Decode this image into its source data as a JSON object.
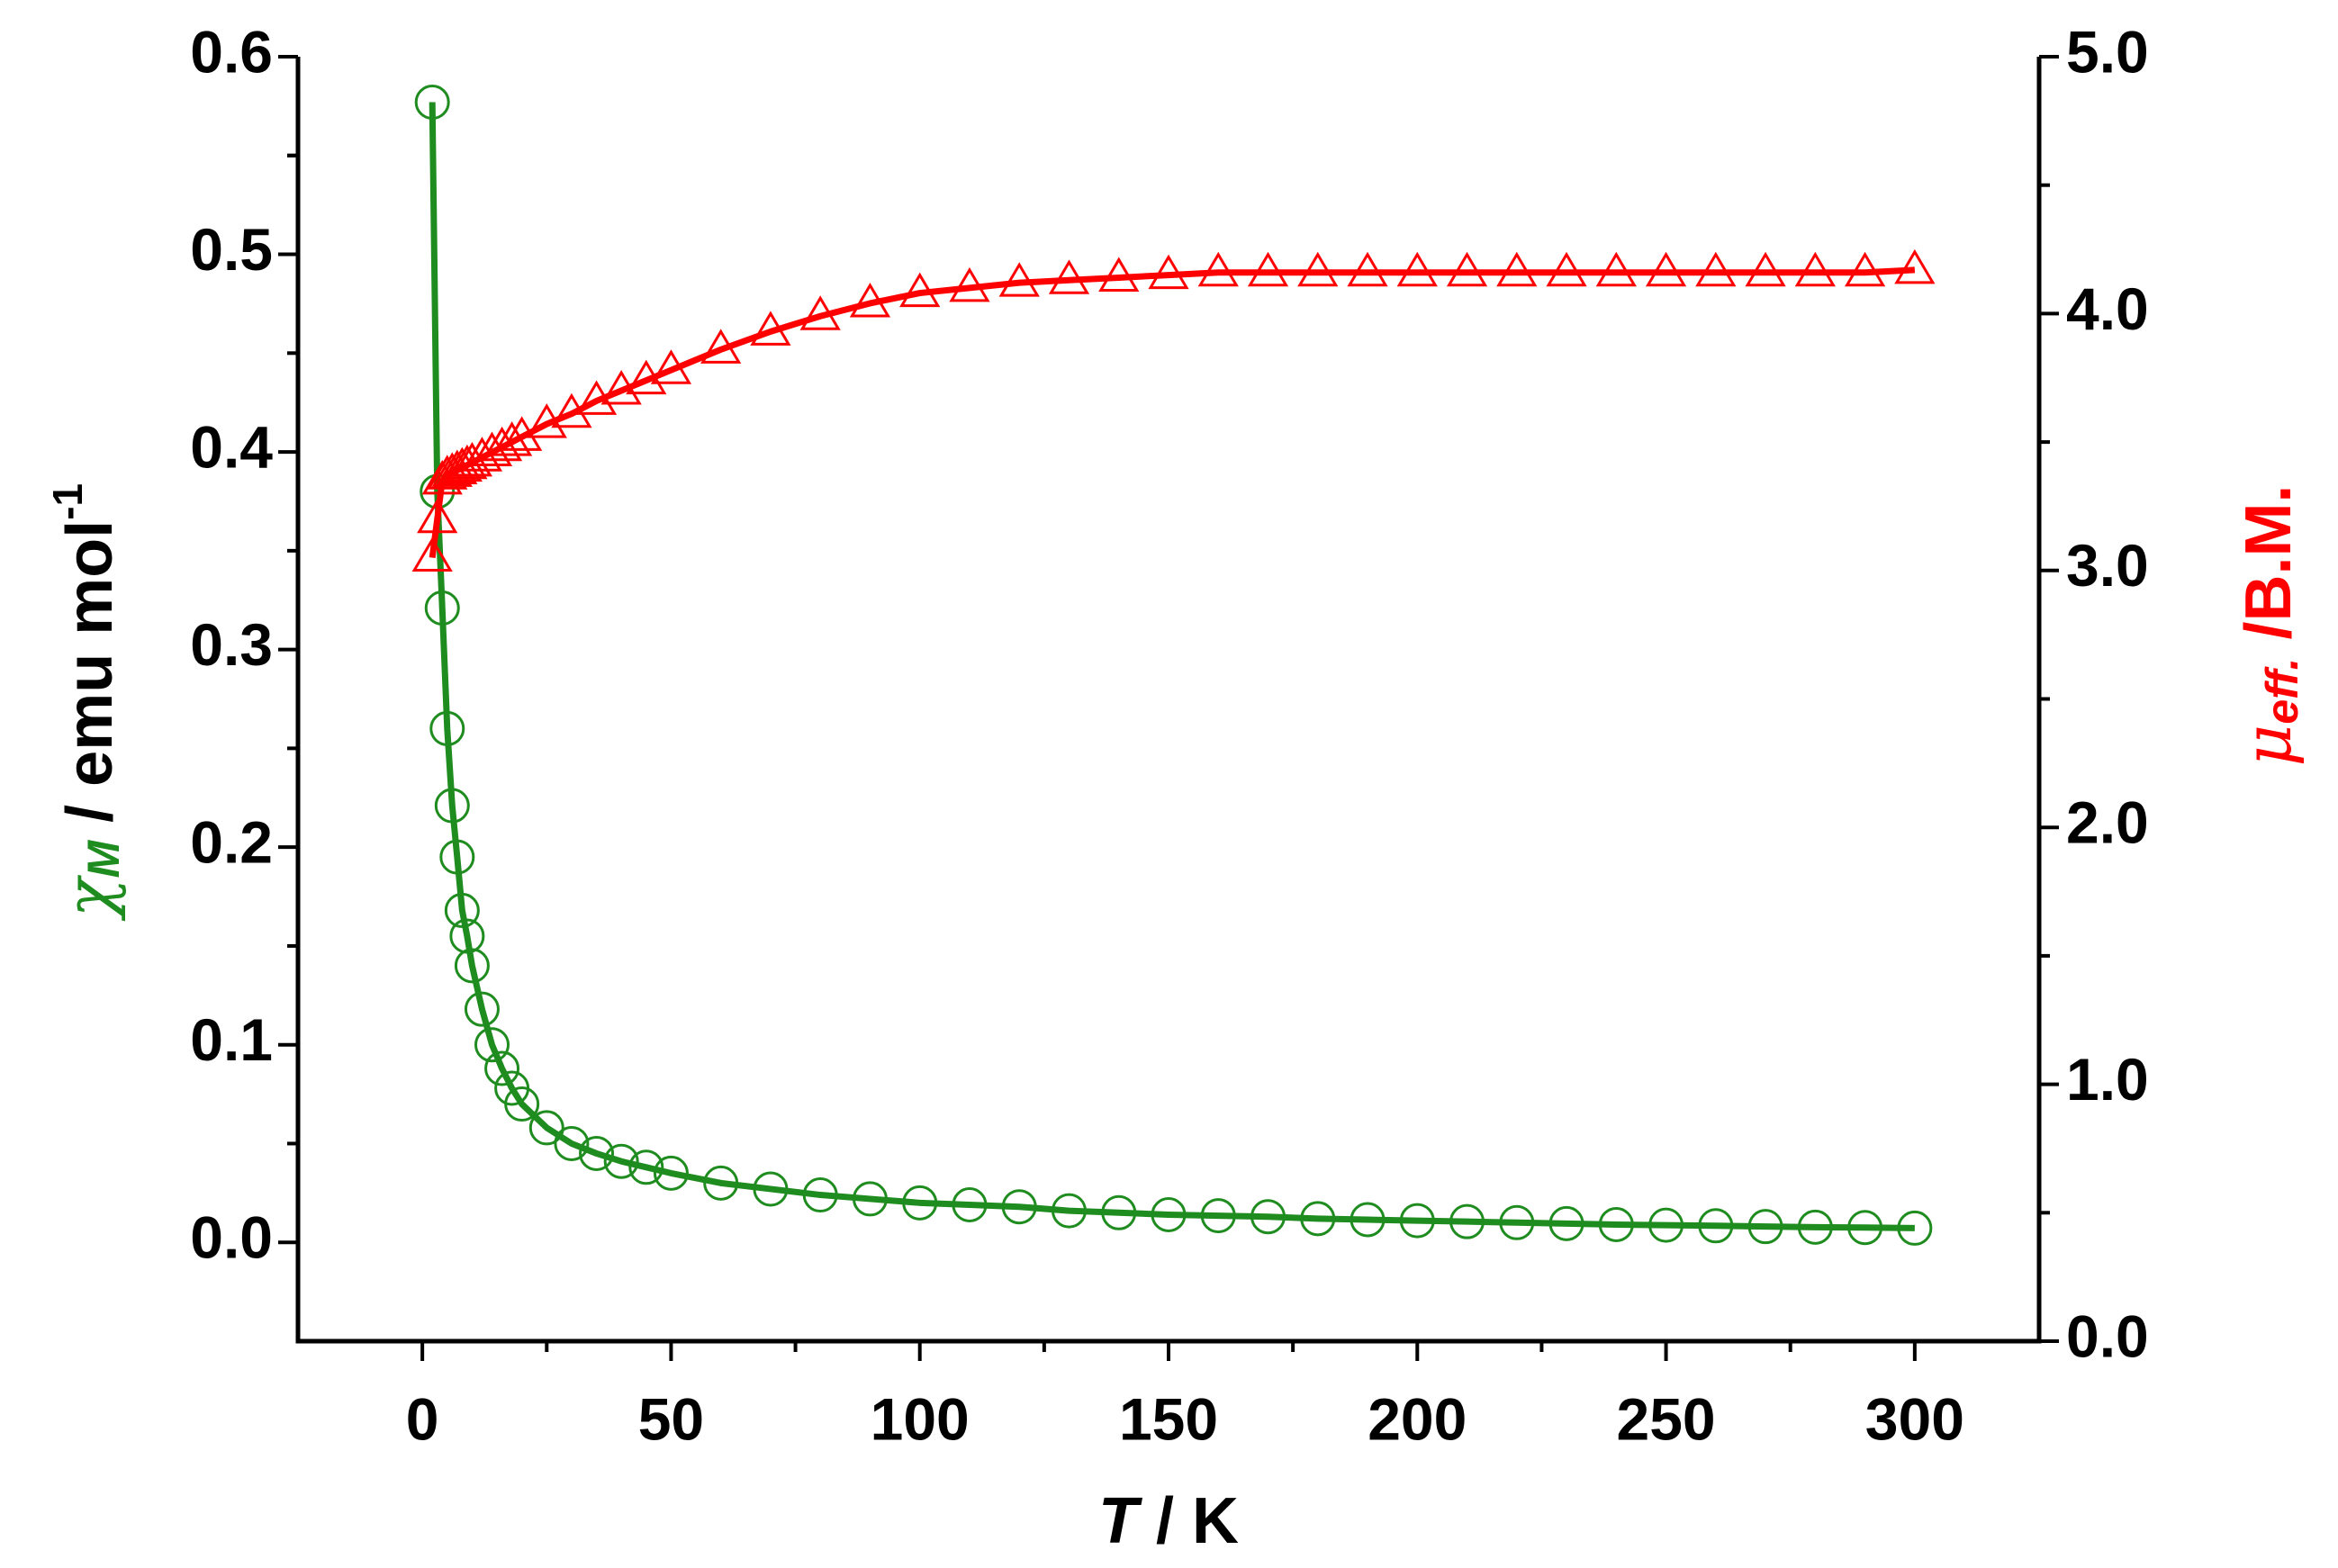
{
  "chart_data": {
    "type": "scatter",
    "xlabel": {
      "symbol": "T",
      "text": " / K"
    },
    "ylabel": {
      "symbol": "χ",
      "sub": "M",
      "text": " / emu mol",
      "sup": "-1"
    },
    "y2label": {
      "symbol": "μ",
      "sub": "eff.",
      "text": " /B.M."
    },
    "xlim": [
      -25,
      325
    ],
    "xticks": [
      0,
      50,
      100,
      150,
      200,
      250,
      300
    ],
    "ylim": [
      -0.05,
      0.6
    ],
    "yticks": [
      {
        "value": 0,
        "label": "0.0"
      },
      {
        "value": 0.1,
        "label": "0.1"
      },
      {
        "value": 0.2,
        "label": "0.2"
      },
      {
        "value": 0.3,
        "label": "0.3"
      },
      {
        "value": 0.4,
        "label": "0.4"
      },
      {
        "value": 0.5,
        "label": "0.5"
      },
      {
        "value": 0.6,
        "label": "0.6"
      }
    ],
    "y2lim": [
      0,
      5
    ],
    "y2ticks": [
      {
        "value": 0,
        "label": "0.0"
      },
      {
        "value": 1,
        "label": "1.0"
      },
      {
        "value": 2,
        "label": "2.0"
      },
      {
        "value": 3,
        "label": "3.0"
      },
      {
        "value": 4,
        "label": "4.0"
      },
      {
        "value": 5,
        "label": "5.0"
      }
    ],
    "x": [
      2,
      3,
      4,
      5,
      6,
      7,
      8,
      9,
      10,
      12,
      14,
      16,
      18,
      20,
      25,
      30,
      35,
      40,
      45,
      50,
      60,
      70,
      80,
      90,
      100,
      110,
      120,
      130,
      140,
      150,
      160,
      170,
      180,
      190,
      200,
      210,
      220,
      230,
      240,
      250,
      260,
      270,
      280,
      290,
      300
    ],
    "series": [
      {
        "color": "#1f8c1f",
        "marker": "circle",
        "axis": "y",
        "values": [
          0.577,
          0.38,
          0.321,
          0.26,
          0.221,
          0.195,
          0.168,
          0.155,
          0.14,
          0.118,
          0.1,
          0.088,
          0.078,
          0.07,
          0.058,
          0.05,
          0.045,
          0.041,
          0.038,
          0.035,
          0.03,
          0.027,
          0.024,
          0.022,
          0.02,
          0.019,
          0.018,
          0.016,
          0.015,
          0.014,
          0.0135,
          0.013,
          0.012,
          0.0115,
          0.011,
          0.0105,
          0.01,
          0.0095,
          0.009,
          0.0087,
          0.0084,
          0.008,
          0.0077,
          0.0075,
          0.0072
        ]
      },
      {
        "color": "#ff0000",
        "marker": "triangle",
        "axis": "y2",
        "values": [
          3.05,
          3.2,
          3.35,
          3.37,
          3.38,
          3.39,
          3.4,
          3.41,
          3.42,
          3.44,
          3.46,
          3.48,
          3.5,
          3.52,
          3.57,
          3.61,
          3.66,
          3.7,
          3.74,
          3.78,
          3.86,
          3.93,
          3.99,
          4.04,
          4.08,
          4.1,
          4.12,
          4.13,
          4.14,
          4.15,
          4.16,
          4.16,
          4.16,
          4.16,
          4.16,
          4.16,
          4.16,
          4.16,
          4.16,
          4.16,
          4.16,
          4.16,
          4.16,
          4.16,
          4.17
        ]
      }
    ]
  }
}
